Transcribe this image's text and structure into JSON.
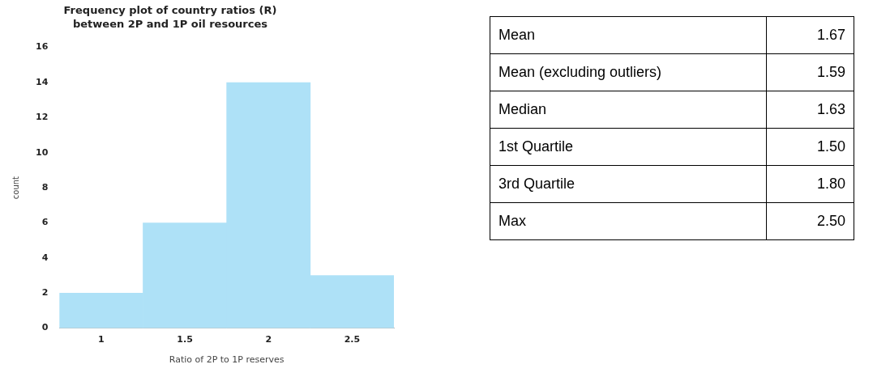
{
  "chart_data": [
    {
      "type": "histogram",
      "title": "Frequency plot of country ratios (R) between 2P and 1P oil resources",
      "xlabel": "Ratio of 2P to 1P reserves",
      "ylabel": "count",
      "bins": [
        0.75,
        1.25,
        1.75,
        2.25,
        2.75
      ],
      "values": [
        2,
        6,
        14,
        3
      ],
      "color": "#aee1f7",
      "xlim": [
        0.75,
        2.75
      ],
      "xticks": [
        1,
        1.5,
        2,
        2.5
      ],
      "ylim": [
        0,
        16
      ],
      "yticks": [
        0,
        2,
        4,
        6,
        8,
        10,
        12,
        14,
        16
      ],
      "grid": false,
      "legend": false
    },
    {
      "type": "other",
      "annotations": [
        "Mean",
        "1.67",
        "Mean (excluding outliers)",
        "1.59",
        "Median",
        "1.63",
        "1st Quartile",
        "1.50",
        "3rd Quartile",
        "1.80",
        "Max",
        "2.50"
      ]
    }
  ]
}
